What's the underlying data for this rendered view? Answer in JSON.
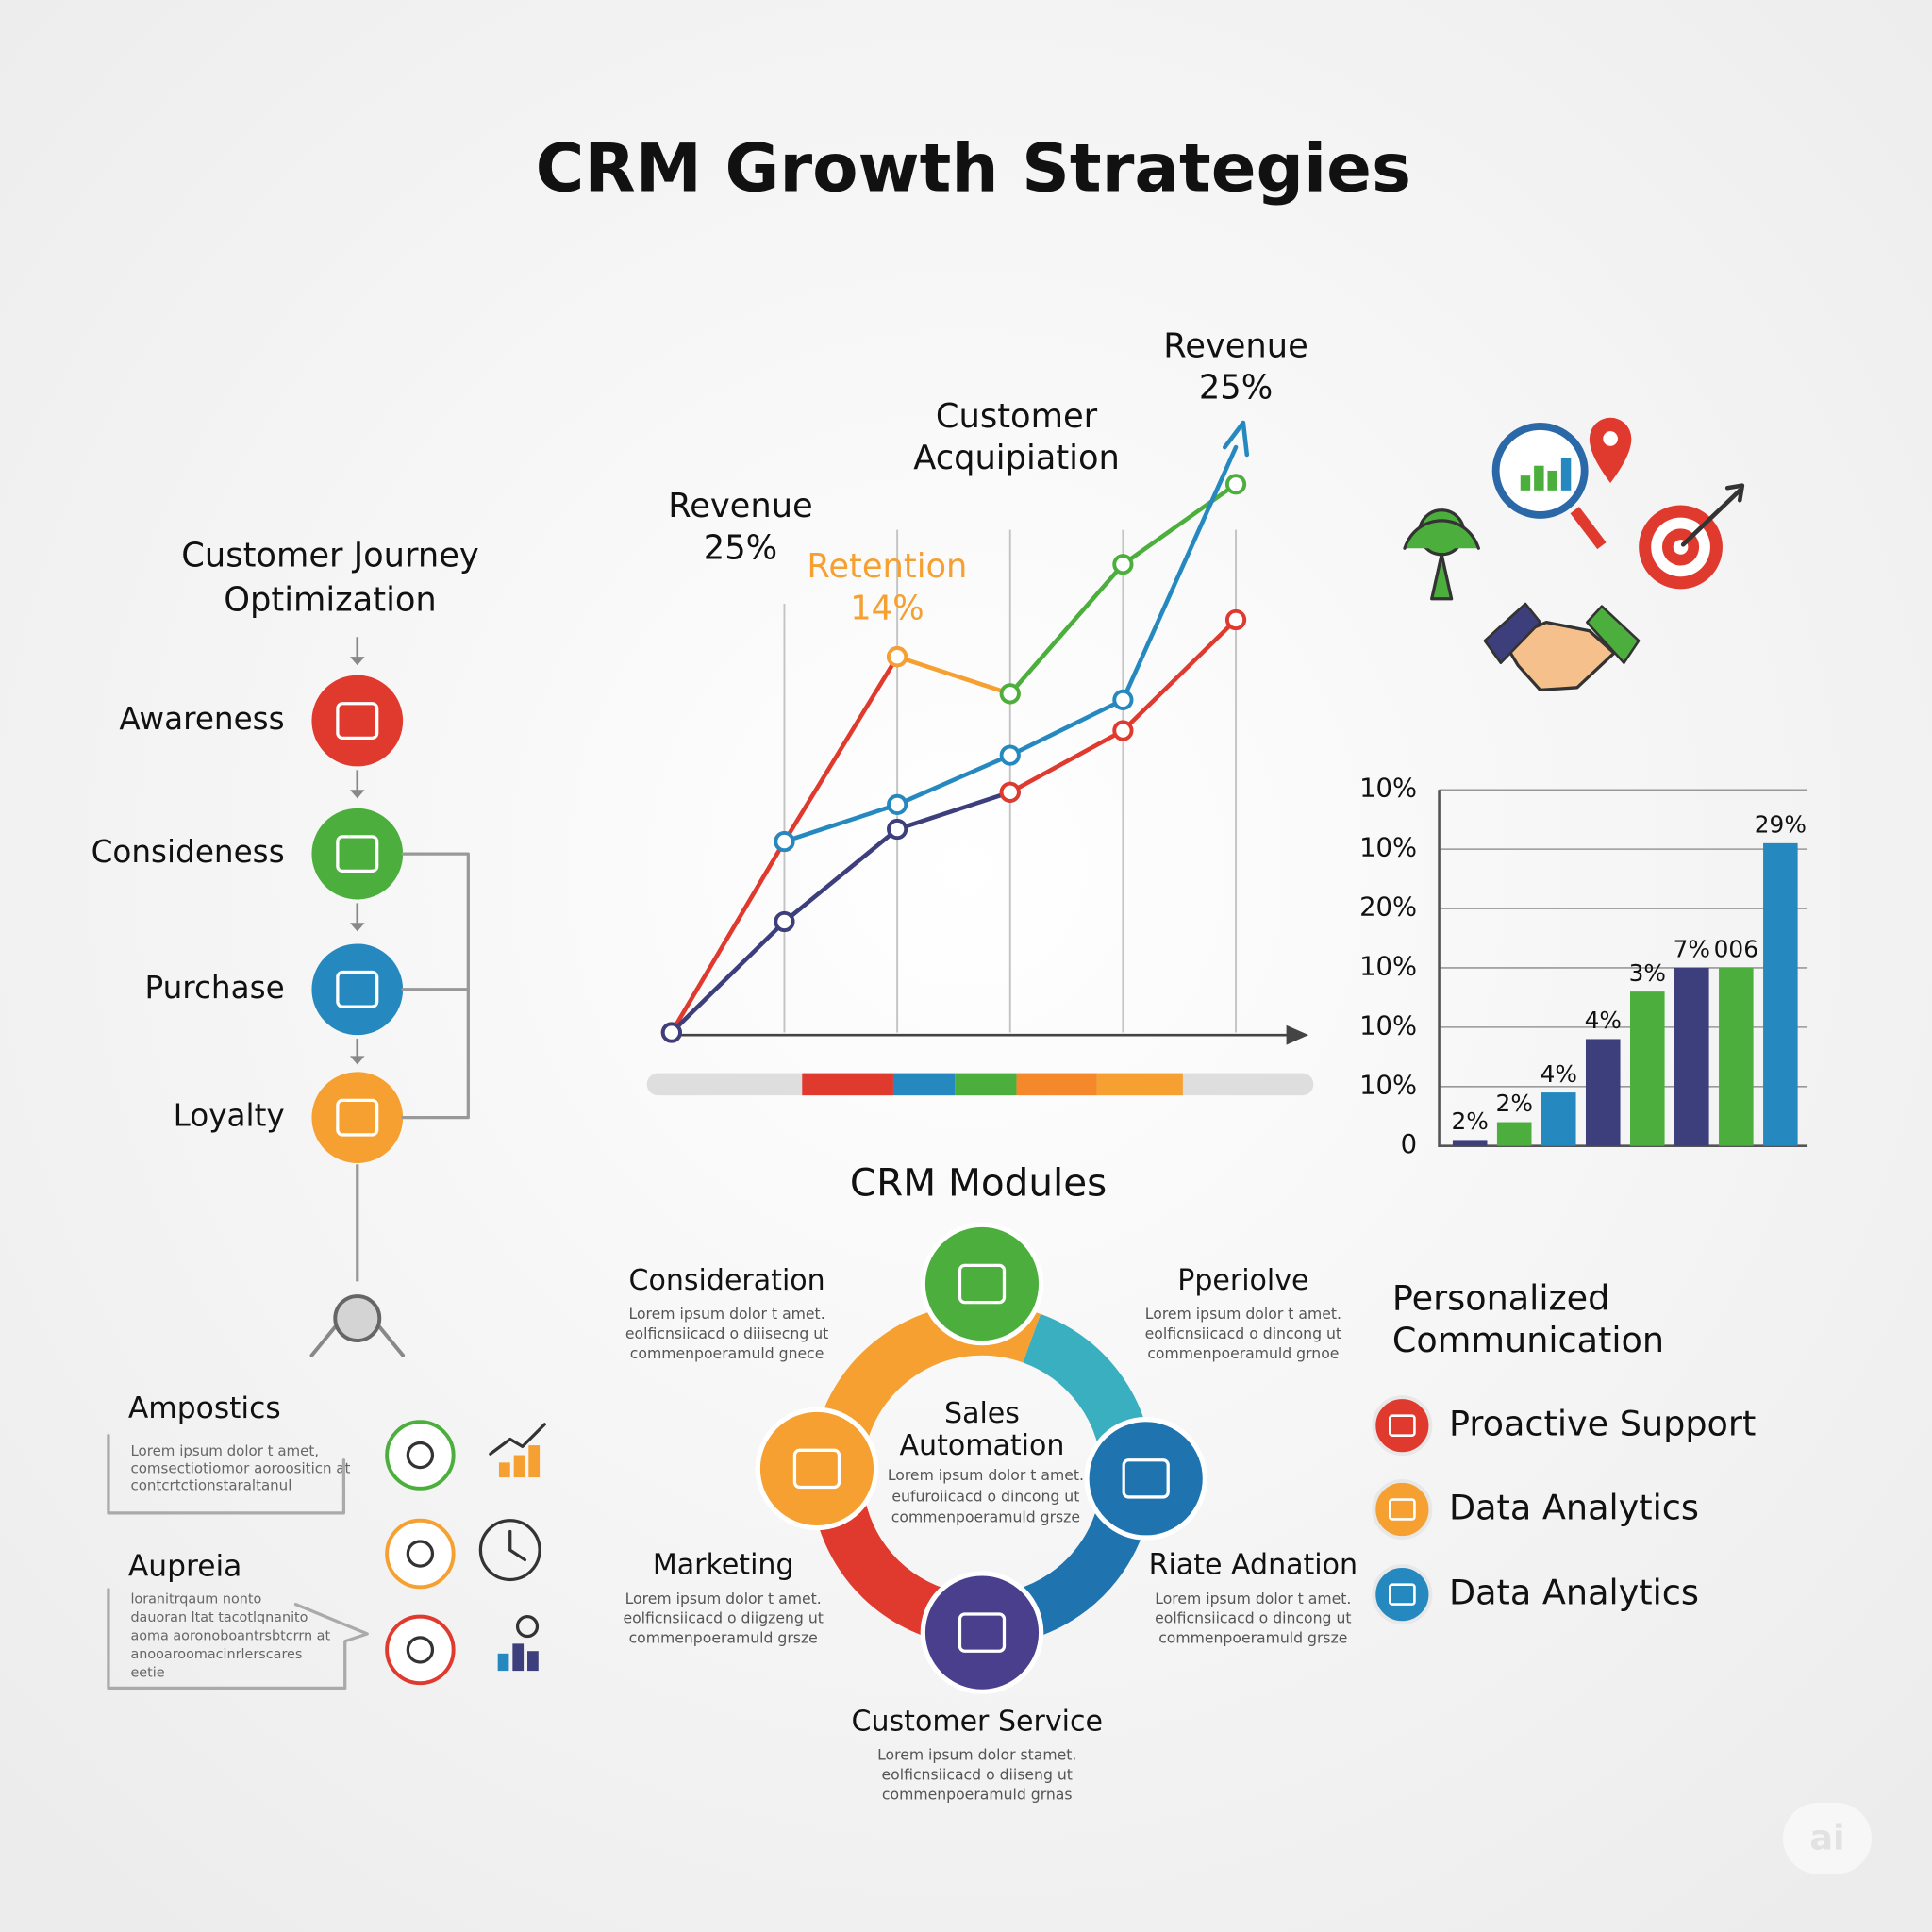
{
  "title": "CRM Growth Strategies",
  "journey": {
    "title": [
      "Customer Journey",
      "Optimization"
    ],
    "steps": [
      "Awareness",
      "Consideness",
      "Purchase",
      "Loyalty"
    ]
  },
  "notes": [
    {
      "title": "Ampostics",
      "text": [
        "Lorem ipsum dolor t amet,",
        "comsectiotiomor aoroositicn at",
        "contcrtctionstaraltanul"
      ]
    },
    {
      "title": "Aupreia",
      "text": [
        "loranitrqaum nonto",
        "dauoran ltat tacotlqnanito",
        "aoma aoronoboantrsbtcrrn at",
        "anooaroomacinrlerscares",
        "eetie"
      ]
    }
  ],
  "chart_data": [
    {
      "type": "line",
      "annotations": [
        {
          "text": [
            "Revenue",
            "25%"
          ]
        },
        {
          "text": [
            "Retention",
            "14%"
          ]
        },
        {
          "text": [
            "Customer",
            "Acquipiation"
          ]
        },
        {
          "text": [
            "Revenue",
            "25%"
          ]
        }
      ],
      "x": [
        0,
        1,
        2,
        3,
        4,
        5
      ],
      "xlim": [
        0,
        5
      ],
      "ylim": [
        0,
        100
      ],
      "series": [
        {
          "color": "#e0392e",
          "values": [
            0,
            31,
            61,
            null,
            null,
            null
          ]
        },
        {
          "color": "#f5a031",
          "values": [
            null,
            null,
            61,
            55,
            null,
            null
          ]
        },
        {
          "color": "#4caf3d",
          "values": [
            null,
            null,
            null,
            55,
            76,
            89
          ]
        },
        {
          "color": "#2589c0",
          "values": [
            null,
            31,
            37,
            45,
            54,
            95
          ]
        },
        {
          "color": "#3d3f7d",
          "values": [
            0,
            18,
            33,
            39,
            null,
            null
          ]
        },
        {
          "color": "#e0392e",
          "values": [
            null,
            null,
            null,
            39,
            49,
            67
          ]
        }
      ]
    },
    {
      "type": "bar",
      "categories": [
        null,
        null,
        null,
        null,
        null,
        null,
        null,
        null
      ],
      "values": [
        0.1,
        0.4,
        0.9,
        1.8,
        2.6,
        3.0,
        3.0,
        5.1
      ],
      "value_labels": [
        "2%",
        "2%",
        "4%",
        "4%",
        "3%",
        "7%",
        "006",
        "29%"
      ],
      "colors": [
        "#3d3f7d",
        "#4caf3d",
        "#2589c0",
        "#3d3f7d",
        "#4caf3d",
        "#3d3f7d",
        "#4caf3d",
        "#2589c0"
      ],
      "ylim": [
        0,
        6
      ],
      "yticks": [
        0,
        {
          "value": 1,
          "label": "10%"
        },
        {
          "value": 2,
          "label": "10%"
        },
        {
          "value": 3,
          "label": "10%"
        },
        {
          "value": 4,
          "label": "20%"
        },
        {
          "value": 5,
          "label": "10%"
        },
        {
          "value": 6,
          "label": "10%"
        }
      ],
      "grid": true
    }
  ],
  "modules": {
    "title": "CRM Modules",
    "center": {
      "title": [
        "Sales",
        "Automation"
      ],
      "text": [
        "Lorem ipsum dolor t amet.",
        "eufuroiicacd o dincong ut",
        "commenpoeramuld grsze"
      ]
    },
    "items": [
      {
        "title": "Consideration",
        "text": [
          "Lorem ipsum dolor t amet.",
          "eolficnsiicacd o diiisecng ut",
          "commenpoeramuld gnece"
        ]
      },
      {
        "title": "Pperiolve",
        "text": [
          "Lorem ipsum dolor t amet.",
          "eolficnsiicacd o dincong ut",
          "commenpoeramuld grnoe"
        ]
      },
      {
        "title": "Marketing",
        "text": [
          "Lorem ipsum dolor t amet.",
          "eolficnsiicacd o diigzeng ut",
          "commenpoeramuld grsze"
        ]
      },
      {
        "title": "Riate Adnation",
        "text": [
          "Lorem ipsum dolor t amet.",
          "eolficnsiicacd o dincong ut",
          "commenpoeramuld grsze"
        ]
      },
      {
        "title": "Customer Service",
        "text": [
          "Lorem ipsum dolor stamet.",
          "eolficnsiicacd o diiseng ut",
          "commenpoeramuld grnas"
        ]
      }
    ]
  },
  "communication": {
    "title": [
      "Personalized",
      "Communication"
    ],
    "items": [
      "Proactive Support",
      "Data Analytics",
      "Data Analytics"
    ]
  },
  "watermark": "ai"
}
